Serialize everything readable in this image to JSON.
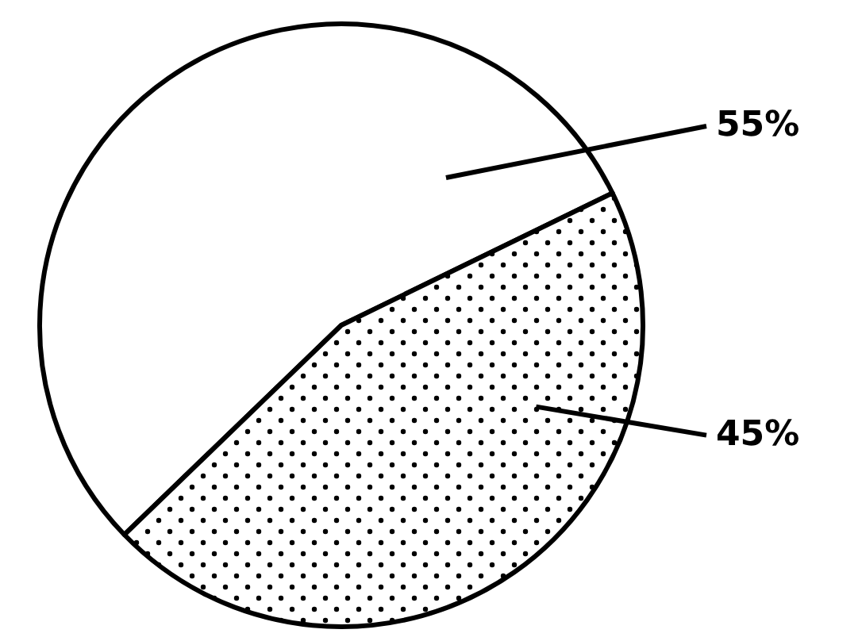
{
  "chart_data": {
    "type": "pie",
    "categories": [
      null,
      null
    ],
    "values": [
      55,
      45
    ],
    "colors": [
      "#ffffff",
      "#000000"
    ],
    "data_labels": true,
    "value_labels": [
      "55%",
      "45%"
    ]
  }
}
